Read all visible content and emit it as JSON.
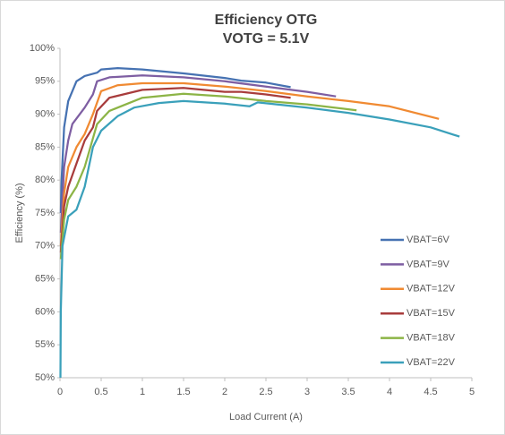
{
  "chart_data": {
    "type": "line",
    "title": "Efficiency OTG",
    "subtitle": "VOTG = 5.1V",
    "x_label": "Load Current (A)",
    "y_label": "Efficiency (%)",
    "xlim": [
      0,
      5
    ],
    "xticks": [
      0,
      0.5,
      1,
      1.5,
      2,
      2.5,
      3,
      3.5,
      4,
      4.5,
      5
    ],
    "ylim": [
      50,
      100
    ],
    "yticks": [
      {
        "value": 50,
        "label": "50%"
      },
      {
        "value": 55,
        "label": "55%"
      },
      {
        "value": 60,
        "label": "60%"
      },
      {
        "value": 65,
        "label": "65%"
      },
      {
        "value": 70,
        "label": "70%"
      },
      {
        "value": 75,
        "label": "75%"
      },
      {
        "value": 80,
        "label": "80%"
      },
      {
        "value": 85,
        "label": "85%"
      },
      {
        "value": 90,
        "label": "90%"
      },
      {
        "value": 95,
        "label": "95%"
      },
      {
        "value": 100,
        "label": "100%"
      }
    ],
    "grid": false,
    "legend": "right",
    "series": [
      {
        "name": "VBAT=6V",
        "color": "#4672b2",
        "x": [
          0.01,
          0.02,
          0.05,
          0.1,
          0.2,
          0.3,
          0.45,
          0.5,
          0.7,
          1,
          1.5,
          2,
          2.2,
          2.5,
          2.8
        ],
        "values": [
          75,
          80,
          88,
          92,
          95,
          95.8,
          96.3,
          96.8,
          97,
          96.8,
          96.2,
          95.5,
          95.1,
          94.8,
          94.1
        ]
      },
      {
        "name": "VBAT=9V",
        "color": "#7e5ea2",
        "x": [
          0.01,
          0.05,
          0.1,
          0.15,
          0.3,
          0.4,
          0.45,
          0.6,
          1,
          1.5,
          2,
          2.5,
          3,
          3.35
        ],
        "values": [
          72,
          82,
          86,
          88.5,
          91,
          93,
          95,
          95.6,
          95.9,
          95.6,
          95,
          94.2,
          93.4,
          92.7
        ]
      },
      {
        "name": "VBAT=12V",
        "color": "#f08a32",
        "x": [
          0.01,
          0.05,
          0.1,
          0.2,
          0.3,
          0.4,
          0.5,
          0.7,
          1,
          1.5,
          2,
          2.5,
          3,
          3.5,
          4,
          4.6
        ],
        "values": [
          70,
          78,
          82,
          85,
          87,
          90,
          93.5,
          94.4,
          94.7,
          94.7,
          94.2,
          93.5,
          92.7,
          92,
          91.2,
          89.3
        ]
      },
      {
        "name": "VBAT=15V",
        "color": "#a83c3c",
        "x": [
          0.01,
          0.05,
          0.1,
          0.2,
          0.3,
          0.4,
          0.45,
          0.6,
          1,
          1.5,
          2,
          2.2,
          2.5,
          2.8
        ],
        "values": [
          69,
          76,
          79,
          82.5,
          86,
          88,
          90.5,
          92.5,
          93.7,
          94,
          93.4,
          93.4,
          93,
          92.5
        ]
      },
      {
        "name": "VBAT=18V",
        "color": "#8cb446",
        "x": [
          0.01,
          0.05,
          0.1,
          0.2,
          0.3,
          0.45,
          0.6,
          1,
          1.5,
          2,
          2.5,
          3,
          3.6
        ],
        "values": [
          68,
          74,
          77,
          79,
          82,
          88.5,
          90.5,
          92.5,
          93.1,
          92.7,
          92,
          91.5,
          90.6
        ]
      },
      {
        "name": "VBAT=22V",
        "color": "#3aa0ba",
        "x": [
          0.005,
          0.01,
          0.03,
          0.1,
          0.2,
          0.3,
          0.4,
          0.5,
          0.7,
          0.9,
          1.2,
          1.5,
          2,
          2.3,
          2.4,
          3,
          3.5,
          4,
          4.5,
          4.85
        ],
        "values": [
          50,
          60,
          70,
          74.5,
          75.5,
          79,
          85,
          87.5,
          89.7,
          91,
          91.7,
          92,
          91.6,
          91.2,
          91.8,
          91,
          90.2,
          89.2,
          88,
          86.6
        ]
      }
    ]
  }
}
